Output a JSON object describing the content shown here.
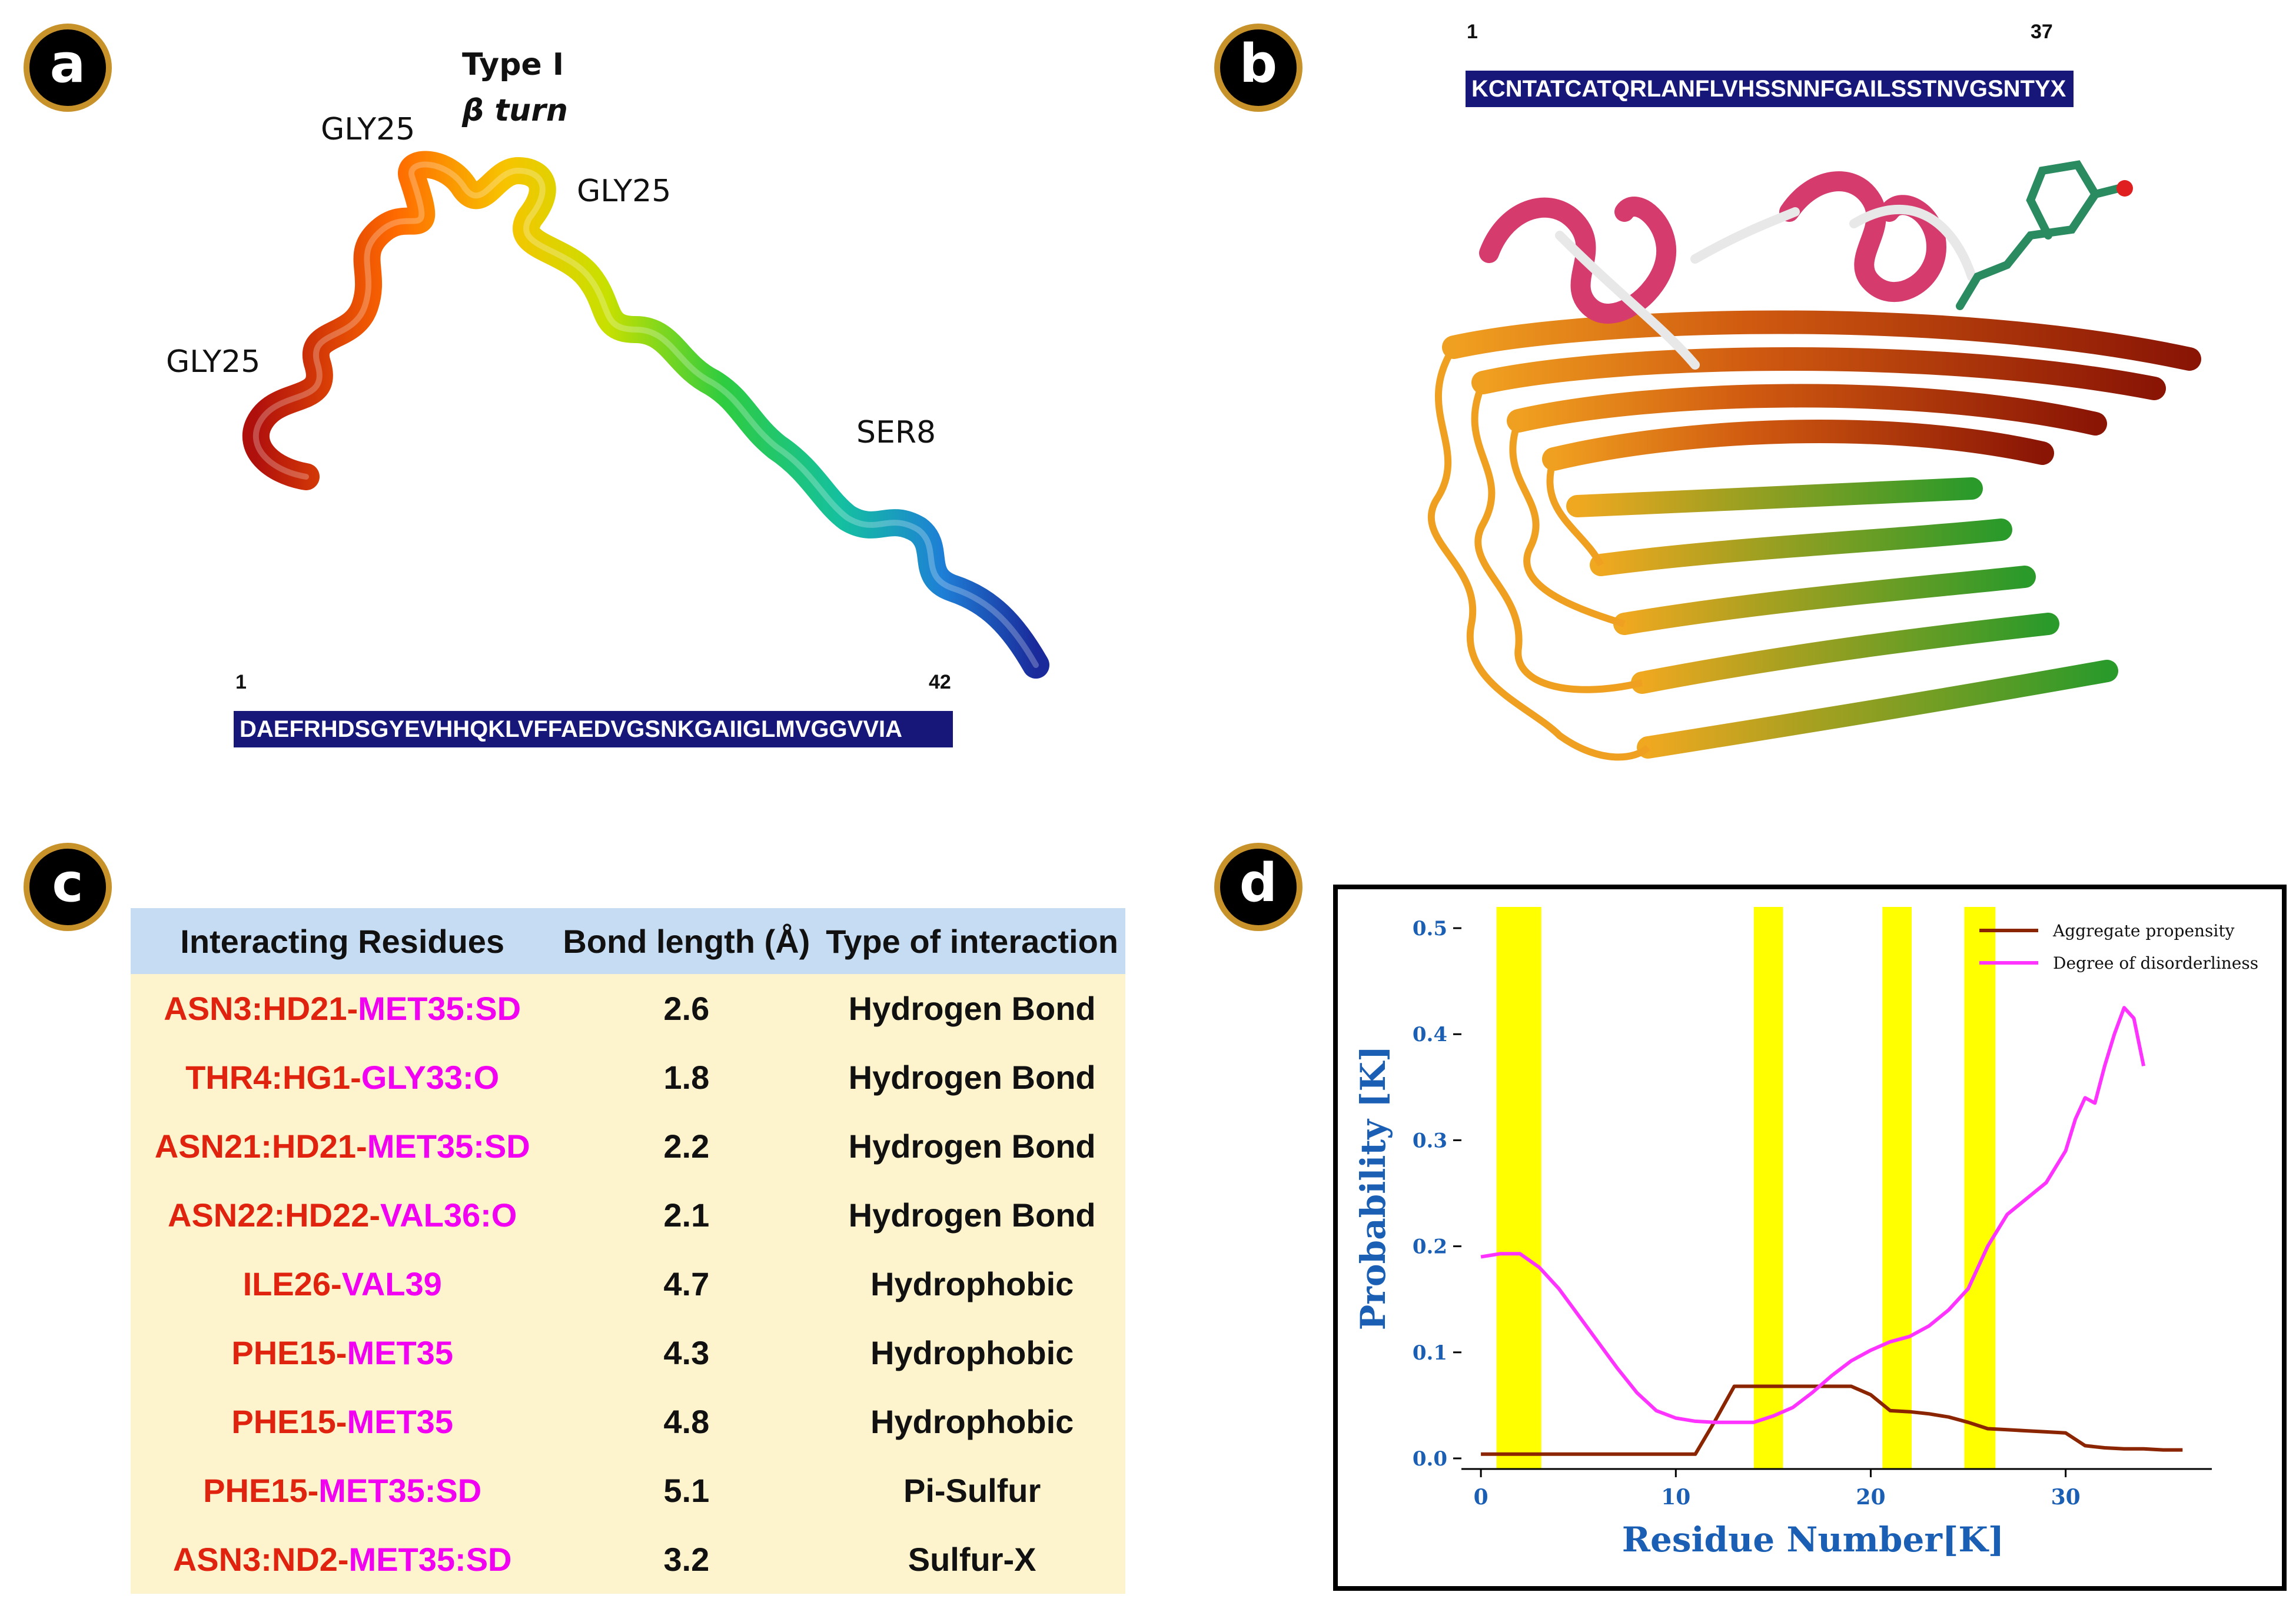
{
  "panels": {
    "a": {
      "badge": "a",
      "turn_label_line1": "Type I",
      "turn_label_line2": "β turn",
      "residue_labels": [
        "GLY25",
        "GLY25",
        "GLY25",
        "SER8"
      ],
      "seq_start": "1",
      "seq_end": "42",
      "sequence": "DAEFRHDSGYEVHHQKLVFFAEDVGSNKGAIIGLMVGGVVIA"
    },
    "b": {
      "badge": "b",
      "seq_start": "1",
      "seq_end": "37",
      "sequence": "KCNTATCATQRLANFLVHSSNNFGAILSSTNVGSNTYX"
    },
    "c": {
      "badge": "c",
      "headers": [
        "Interacting Residues",
        "Bond length (Å)",
        "Type of interaction"
      ],
      "rows": [
        {
          "res_a": "ASN3:HD21-",
          "res_b": "MET35:SD",
          "length": "2.6",
          "type": "Hydrogen Bond"
        },
        {
          "res_a": "THR4:HG1-",
          "res_b": "GLY33:O",
          "length": "1.8",
          "type": "Hydrogen Bond"
        },
        {
          "res_a": "ASN21:HD21-",
          "res_b": "MET35:SD",
          "length": "2.2",
          "type": "Hydrogen Bond"
        },
        {
          "res_a": "ASN22:HD22-",
          "res_b": "VAL36:O",
          "length": "2.1",
          "type": "Hydrogen Bond"
        },
        {
          "res_a": "ILE26-",
          "res_b": "VAL39",
          "length": "4.7",
          "type": "Hydrophobic"
        },
        {
          "res_a": "PHE15-",
          "res_b": "MET35",
          "length": "4.3",
          "type": "Hydrophobic"
        },
        {
          "res_a": "PHE15-",
          "res_b": "MET35",
          "length": "4.8",
          "type": "Hydrophobic"
        },
        {
          "res_a": "PHE15-",
          "res_b": "MET35:SD",
          "length": "5.1",
          "type": "Pi-Sulfur"
        },
        {
          "res_a": "ASN3:ND2-",
          "res_b": "MET35:SD",
          "length": "3.2",
          "type": "Sulfur-X"
        }
      ]
    },
    "d": {
      "badge": "d"
    }
  },
  "chart_data": {
    "type": "line",
    "xlabel": "Residue Number[K]",
    "ylabel": "Probability [K]",
    "xlim": [
      -1,
      37.5
    ],
    "ylim": [
      -0.01,
      0.52
    ],
    "xticks": [
      "0",
      "10",
      "20",
      "30"
    ],
    "yticks": [
      "0.0",
      "0.1",
      "0.2",
      "0.3",
      "0.4",
      "0.5"
    ],
    "highlight_bands": [
      [
        0.8,
        3.1
      ],
      [
        14.0,
        15.5
      ],
      [
        20.6,
        22.1
      ],
      [
        24.8,
        26.4
      ]
    ],
    "highlight_color": "#ffff00",
    "legend_position": "top-right",
    "series": [
      {
        "name": "Aggregate propensity",
        "color": "#8b2500",
        "x": [
          0,
          10,
          11,
          12,
          13,
          14,
          15,
          16,
          17,
          18,
          19,
          20,
          21,
          22,
          23,
          24,
          25,
          26,
          27,
          28,
          29,
          30,
          31,
          32,
          33,
          34,
          35,
          36
        ],
        "y": [
          0.004,
          0.004,
          0.004,
          0.035,
          0.068,
          0.068,
          0.068,
          0.068,
          0.068,
          0.068,
          0.068,
          0.06,
          0.045,
          0.044,
          0.042,
          0.039,
          0.034,
          0.028,
          0.027,
          0.026,
          0.025,
          0.024,
          0.012,
          0.01,
          0.009,
          0.009,
          0.008,
          0.008
        ]
      },
      {
        "name": "Degree of disorderliness",
        "color": "#ff33ff",
        "x": [
          0,
          1,
          2,
          3,
          4,
          5,
          6,
          7,
          8,
          9,
          10,
          11,
          12,
          13,
          14,
          15,
          16,
          17,
          18,
          19,
          20,
          21,
          22,
          23,
          24,
          25,
          26,
          27,
          28,
          29,
          30,
          30.5,
          31,
          31.5,
          32,
          32.5,
          33,
          33.5,
          34
        ],
        "y": [
          0.19,
          0.193,
          0.193,
          0.18,
          0.16,
          0.135,
          0.11,
          0.085,
          0.062,
          0.045,
          0.038,
          0.035,
          0.034,
          0.034,
          0.034,
          0.04,
          0.048,
          0.062,
          0.078,
          0.092,
          0.102,
          0.11,
          0.115,
          0.125,
          0.14,
          0.16,
          0.2,
          0.23,
          0.245,
          0.26,
          0.29,
          0.32,
          0.34,
          0.335,
          0.37,
          0.4,
          0.425,
          0.415,
          0.37
        ]
      }
    ]
  }
}
